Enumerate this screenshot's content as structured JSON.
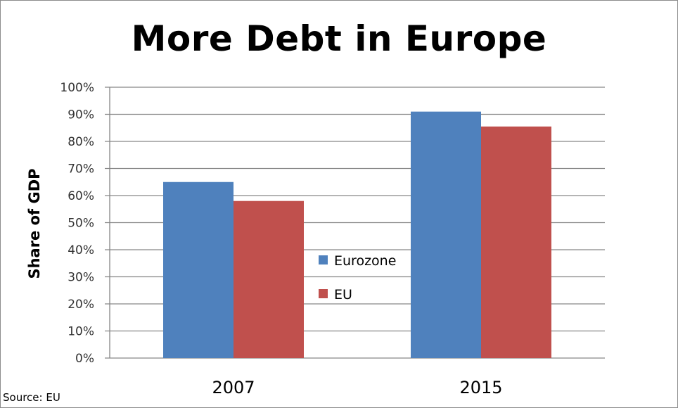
{
  "chart_data": {
    "type": "bar",
    "title": "More Debt in Europe",
    "ylabel": "Share of GDP",
    "xlabel": "",
    "categories": [
      "2007",
      "2015"
    ],
    "series": [
      {
        "name": "Eurozone",
        "values": [
          65,
          91
        ],
        "color": "#4f81bd"
      },
      {
        "name": "EU",
        "values": [
          58,
          85.5
        ],
        "color": "#c0504d"
      }
    ],
    "ylim": [
      0,
      100
    ],
    "yticks": [
      "0%",
      "10%",
      "20%",
      "30%",
      "40%",
      "50%",
      "60%",
      "70%",
      "80%",
      "90%",
      "100%"
    ],
    "grid": true,
    "legend_position": "center"
  },
  "source": "Source: EU"
}
